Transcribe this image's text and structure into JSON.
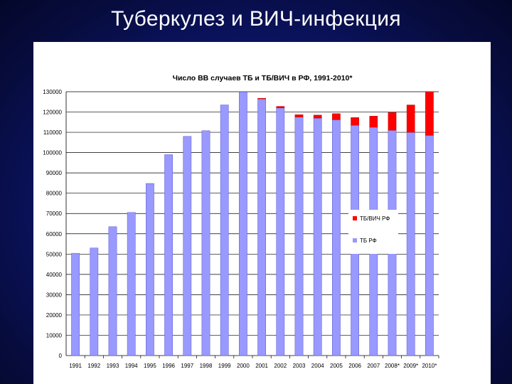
{
  "slide": {
    "title": "Туберкулез и  ВИЧ-инфекция"
  },
  "colors": {
    "background": "#0d1670",
    "tb_bar": "#9999ff",
    "tbhiv_bar": "#ff0000",
    "bar_outline": "#5a5acc"
  },
  "chart_data": {
    "type": "bar",
    "stacked": true,
    "title": "Число ВВ случаев ТБ и ТБ/ВИЧ в РФ, 1991-2010*",
    "categories": [
      "1991",
      "1992",
      "1993",
      "1994",
      "1995",
      "1996",
      "1997",
      "1998",
      "1999",
      "2000",
      "2001",
      "2002",
      "2003",
      "2004",
      "2005",
      "2006",
      "2007",
      "2008*",
      "2009*",
      "2010*"
    ],
    "series": [
      {
        "name": "ТБ РФ",
        "color": "#9999ff",
        "values": [
          50400,
          53000,
          63500,
          70500,
          84800,
          99000,
          108000,
          110800,
          123500,
          129900,
          126500,
          122000,
          117500,
          117000,
          116200,
          113500,
          112500,
          111000,
          110000,
          108500
        ]
      },
      {
        "name": "ТБ/ВИЧ РФ",
        "color": "#ff0000",
        "values": [
          0,
          0,
          0,
          0,
          0,
          0,
          0,
          0,
          0,
          0,
          300,
          800,
          1200,
          1500,
          3000,
          3800,
          5500,
          8800,
          13500,
          21500
        ]
      }
    ],
    "yticks": [
      "0",
      "10000",
      "20000",
      "30000",
      "40000",
      "50000",
      "60000",
      "70000",
      "80000",
      "90000",
      "100000",
      "110000",
      "120000",
      "130000"
    ],
    "ylim": [
      0,
      130000
    ],
    "grid": true,
    "legend_position": "right"
  }
}
